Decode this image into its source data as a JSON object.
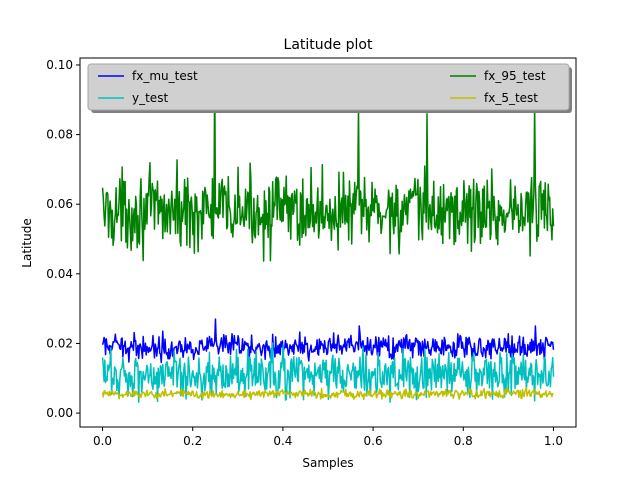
{
  "chart_data": {
    "type": "line",
    "title": "Latitude plot",
    "xlabel": "Samples",
    "ylabel": "Latitude",
    "xlim": [
      -0.05,
      1.05
    ],
    "ylim": [
      -0.004,
      0.102
    ],
    "xticks": [
      0.0,
      0.2,
      0.4,
      0.6,
      0.8,
      1.0
    ],
    "xtick_labels": [
      "0.0",
      "0.2",
      "0.4",
      "0.6",
      "0.8",
      "1.0"
    ],
    "yticks": [
      0.0,
      0.02,
      0.04,
      0.06,
      0.08,
      0.1
    ],
    "ytick_labels": [
      "0.00",
      "0.02",
      "0.04",
      "0.06",
      "0.08",
      "0.10"
    ],
    "grid": false,
    "legend_placement": "top",
    "legend_columns": 2,
    "n_samples": 600,
    "series": [
      {
        "name": "fx_mu_test",
        "color": "#0000ff",
        "center": 0.019,
        "spread": 0.0025,
        "min": 0.014,
        "max": 0.027,
        "spikes": [
          {
            "x": 0.25,
            "y": 0.027
          },
          {
            "x": 0.57,
            "y": 0.025
          },
          {
            "x": 0.96,
            "y": 0.025
          }
        ]
      },
      {
        "name": "fx_95_test",
        "color": "#008000",
        "center": 0.058,
        "spread": 0.008,
        "min": 0.04,
        "max": 0.0985,
        "spikes": [
          {
            "x": 0.248,
            "y": 0.0985
          },
          {
            "x": 0.568,
            "y": 0.088
          },
          {
            "x": 0.72,
            "y": 0.086
          },
          {
            "x": 0.958,
            "y": 0.088
          }
        ]
      },
      {
        "name": "y_test",
        "color": "#00bfbf",
        "center": 0.011,
        "spread": 0.005,
        "min": 0.001,
        "max": 0.024,
        "spikes": []
      },
      {
        "name": "fx_5_test",
        "color": "#bfbf00",
        "center": 0.0055,
        "spread": 0.001,
        "min": 0.003,
        "max": 0.008,
        "spikes": []
      }
    ]
  }
}
